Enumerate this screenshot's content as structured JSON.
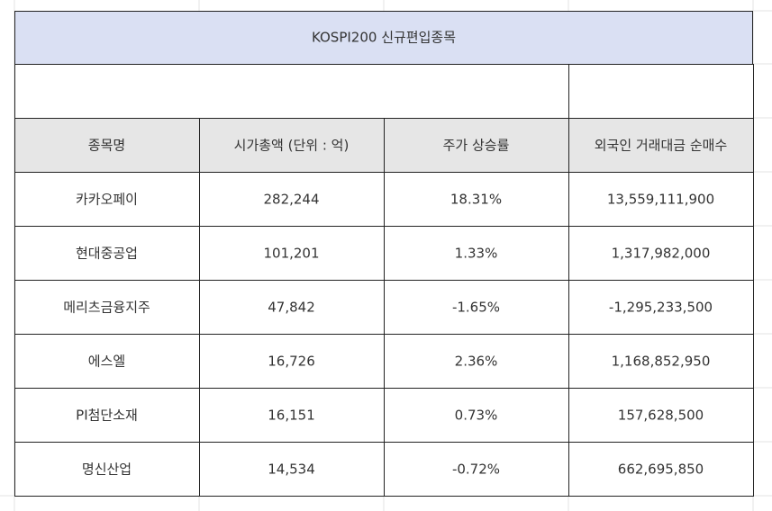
{
  "title": "KOSPI200 신규편입종목",
  "table": {
    "header": [
      "종목명",
      "시가총액 (단위 : 억)",
      "주가 상승률",
      "외국인 거래대금 순매수"
    ],
    "rows": [
      [
        "카카오페이",
        "282,244",
        "18.31%",
        "13,559,111,900"
      ],
      [
        "현대중공업",
        "101,201",
        "1.33%",
        "1,317,982,000"
      ],
      [
        "메리츠금융지주",
        "47,842",
        "-1.65%",
        "-1,295,233,500"
      ],
      [
        "에스엘",
        "16,726",
        "2.36%",
        "1,168,852,950"
      ],
      [
        "PI첨단소재",
        "16,151",
        "0.73%",
        "157,628,500"
      ],
      [
        "명신산업",
        "14,534",
        "-0.72%",
        "662,695,850"
      ]
    ]
  }
}
